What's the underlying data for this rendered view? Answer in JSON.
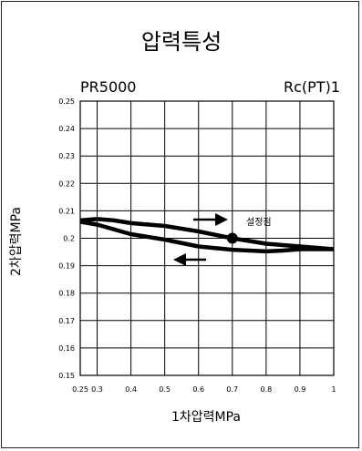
{
  "chart_data": {
    "type": "line",
    "title": "압력특성",
    "model": "PR5000",
    "port": "Rc(PT)1",
    "xlabel": "1차압력MPa",
    "ylabel": "2차압력MPa",
    "xlim": [
      0.25,
      1.0
    ],
    "ylim": [
      0.15,
      0.25
    ],
    "x_ticks": [
      "0.25",
      "0.3",
      "0.4",
      "0.5",
      "0.6",
      "0.7",
      "0.8",
      "0.9",
      "1"
    ],
    "y_ticks": [
      "0.25",
      "0.24",
      "0.23",
      "0.22",
      "0.21",
      "0.2",
      "0.19",
      "0.18",
      "0.17",
      "0.16",
      "0.15"
    ],
    "grid": true,
    "set_point_label": "설정점",
    "set_point": {
      "x": 0.7,
      "y": 0.2
    },
    "series": [
      {
        "direction": "increasing",
        "x": [
          0.25,
          0.3,
          0.35,
          0.4,
          0.5,
          0.6,
          0.7,
          0.8,
          0.9,
          1.0
        ],
        "y": [
          0.2065,
          0.207,
          0.2065,
          0.2055,
          0.2045,
          0.2025,
          0.2,
          0.198,
          0.197,
          0.196
        ]
      },
      {
        "direction": "decreasing",
        "x": [
          0.25,
          0.3,
          0.4,
          0.5,
          0.6,
          0.7,
          0.8,
          0.85,
          0.9,
          1.0
        ],
        "y": [
          0.206,
          0.205,
          0.2015,
          0.1995,
          0.197,
          0.1958,
          0.1952,
          0.1955,
          0.196,
          0.196
        ]
      }
    ]
  }
}
